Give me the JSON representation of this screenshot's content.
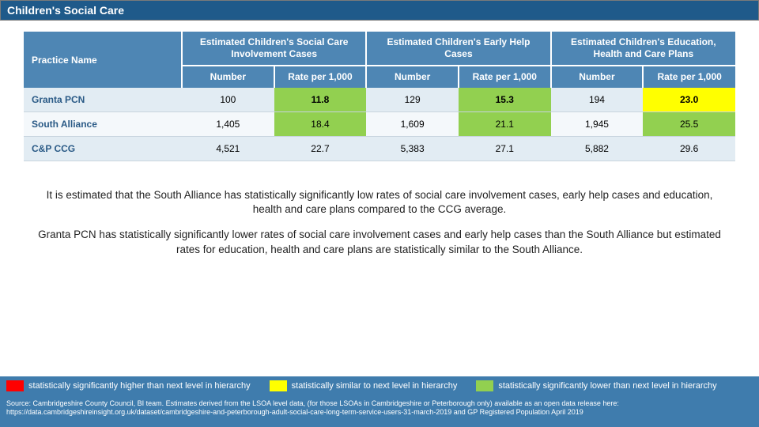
{
  "title": "Children's Social Care",
  "table": {
    "practice_header": "Practice Name",
    "groups": [
      "Estimated Children's Social Care Involvement Cases",
      "Estimated Children's Early Help Cases",
      "Estimated Children's Education, Health and Care Plans"
    ],
    "sub_number": "Number",
    "sub_rate": "Rate per 1,000",
    "rows": [
      {
        "label": "Granta PCN",
        "cells": [
          {
            "v": "100",
            "bg": "#e2ecf3"
          },
          {
            "v": "11.8",
            "bg": "#92d050",
            "bold": true
          },
          {
            "v": "129",
            "bg": "#e2ecf3"
          },
          {
            "v": "15.3",
            "bg": "#92d050",
            "bold": true
          },
          {
            "v": "194",
            "bg": "#e2ecf3"
          },
          {
            "v": "23.0",
            "bg": "#ffff00",
            "bold": true
          }
        ]
      },
      {
        "label": "South Alliance",
        "cells": [
          {
            "v": "1,405",
            "bg": "#f4f8fb"
          },
          {
            "v": "18.4",
            "bg": "#92d050"
          },
          {
            "v": "1,609",
            "bg": "#f4f8fb"
          },
          {
            "v": "21.1",
            "bg": "#92d050"
          },
          {
            "v": "1,945",
            "bg": "#f4f8fb"
          },
          {
            "v": "25.5",
            "bg": "#92d050"
          }
        ]
      },
      {
        "label": "C&P CCG",
        "cells": [
          {
            "v": "4,521",
            "bg": "#e2ecf3"
          },
          {
            "v": "22.7",
            "bg": "#e2ecf3"
          },
          {
            "v": "5,383",
            "bg": "#e2ecf3"
          },
          {
            "v": "27.1",
            "bg": "#e2ecf3"
          },
          {
            "v": "5,882",
            "bg": "#e2ecf3"
          },
          {
            "v": "29.6",
            "bg": "#e2ecf3"
          }
        ]
      }
    ]
  },
  "commentary": {
    "p1": "It is estimated that the South Alliance has statistically significantly low rates of social care involvement cases, early help cases and education, health and care plans compared to the CCG average.",
    "p2": "Granta PCN has statistically significantly lower rates of social care involvement cases and early help cases than the South Alliance but estimated rates for education, health and care plans are statistically similar to the South Alliance."
  },
  "legend": {
    "items": [
      {
        "color": "#ff0000",
        "label": "statistically significantly higher than next level in hierarchy"
      },
      {
        "color": "#ffff00",
        "label": "statistically similar to next level in hierarchy"
      },
      {
        "color": "#92d050",
        "label": "statistically significantly lower than next level in hierarchy"
      }
    ]
  },
  "source": {
    "line1": "Source: Cambridgeshire County Council, BI team.  Estimates derived from the LSOA level data, (for those LSOAs in Cambridgeshire or Peterborough only) available as an open data release here:",
    "line2": "https://data.cambridgeshireinsight.org.uk/dataset/cambridgeshire-and-peterborough-adult-social-care-long-term-service-users-31-march-2019 and GP Registered Population April 2019"
  },
  "colors": {
    "title_bg": "#1f5a8a",
    "header_bg": "#4e86b4",
    "row_alt1": "#e2ecf3",
    "row_alt2": "#f4f8fb",
    "legend_bg": "#3f7cad",
    "highlight_green": "#92d050",
    "highlight_yellow": "#ffff00",
    "highlight_red": "#ff0000"
  }
}
